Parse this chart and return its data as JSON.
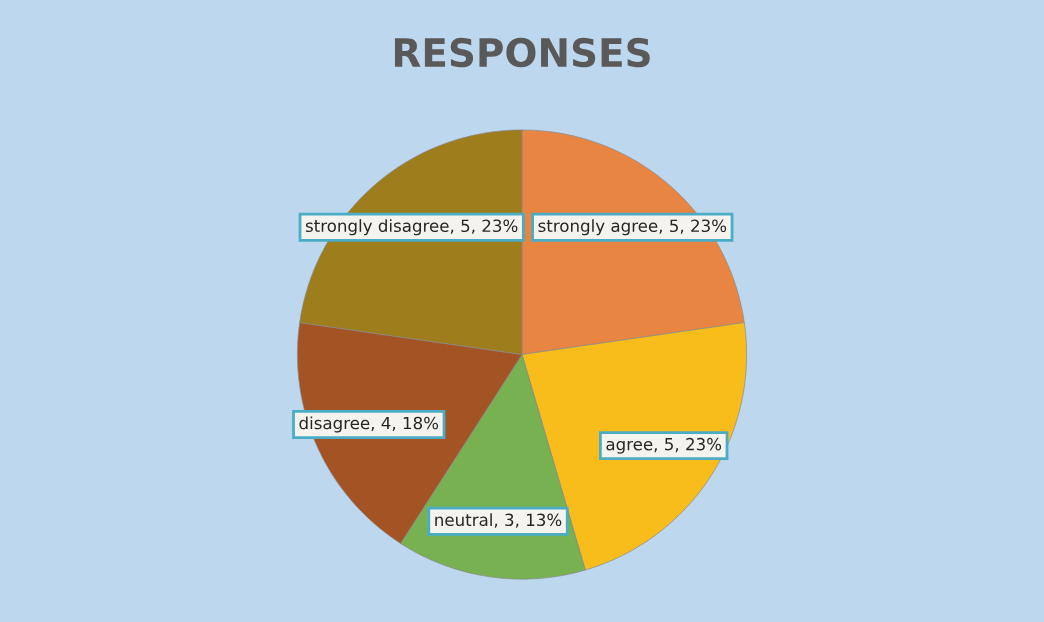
{
  "chart_data": {
    "type": "pie",
    "title": "RESPONSES",
    "categories": [
      "strongly agree",
      "agree",
      "neutral",
      "disagree",
      "strongly disagree"
    ],
    "values": [
      5,
      5,
      3,
      4,
      5
    ],
    "value_labels": [
      "5, 23%",
      "5, 23%",
      "3, 13%",
      "4, 18%",
      "5, 23%"
    ],
    "colors": [
      "#e88543",
      "#f9bd1b",
      "#77b151",
      "#a45424",
      "#9e7d1d"
    ]
  }
}
